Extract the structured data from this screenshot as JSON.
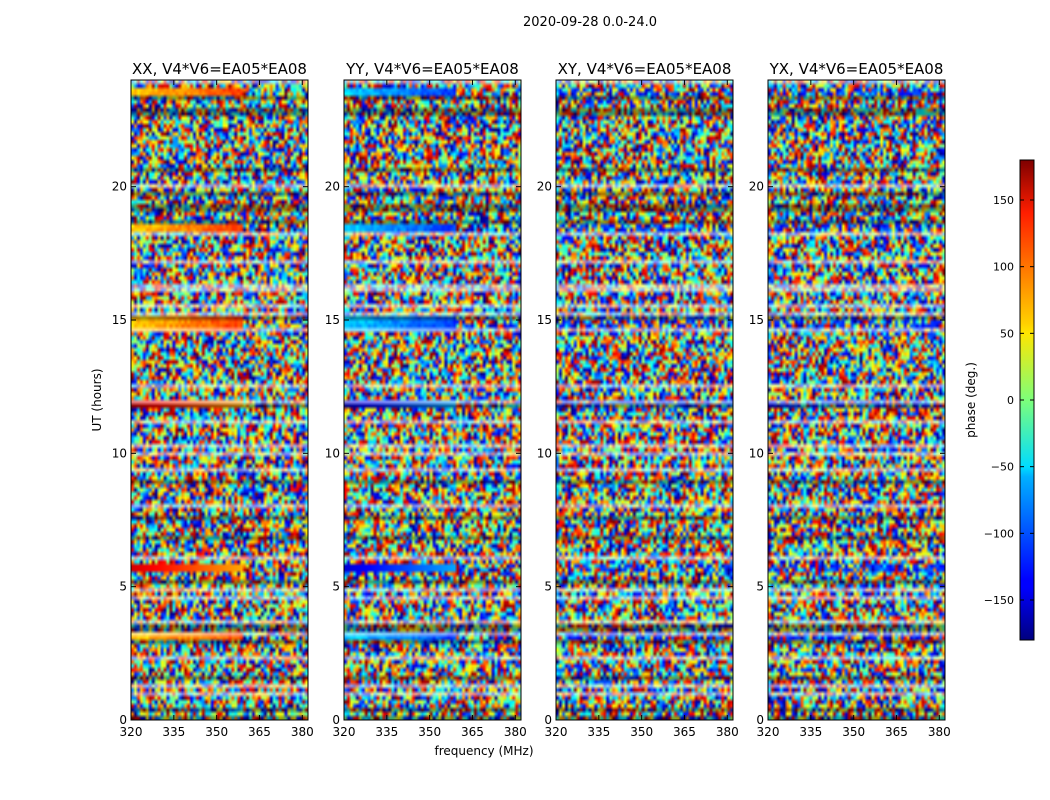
{
  "figure": {
    "suptitle": "2020-09-28 0.0-24.0"
  },
  "chart_data": {
    "type": "heatmap",
    "panels": [
      {
        "title": "XX, V4*V6=EA05*EA08"
      },
      {
        "title": "YY, V4*V6=EA05*EA08"
      },
      {
        "title": "XY, V4*V6=EA05*EA08"
      },
      {
        "title": "YX, V4*V6=EA05*EA08"
      }
    ],
    "xlabel": "frequency (MHz)",
    "ylabel": "UT (hours)",
    "xlim": [
      320,
      382
    ],
    "ylim": [
      0,
      24
    ],
    "xticks": [
      320,
      335,
      350,
      365,
      380
    ],
    "yticks": [
      0,
      5,
      10,
      15,
      20
    ],
    "colorbar": {
      "label": "phase (deg.)",
      "range": [
        -180,
        180
      ],
      "ticks": [
        150,
        100,
        50,
        0,
        -50,
        -100,
        -150
      ],
      "tick_labels": [
        "150",
        "100",
        "50",
        "0",
        "−50",
        "−100",
        "−150"
      ],
      "colormap": "jet"
    },
    "strong_signal_bands_hours": [
      [
        2.95,
        3.25
      ],
      [
        5.55,
        5.8
      ],
      [
        11.75,
        11.95
      ],
      [
        14.6,
        15.2
      ],
      [
        18.25,
        18.55
      ],
      [
        23.35,
        23.65
      ]
    ],
    "colors": {
      "flagged_dark": "#000000",
      "flagged_blank": "#ffffff"
    }
  }
}
